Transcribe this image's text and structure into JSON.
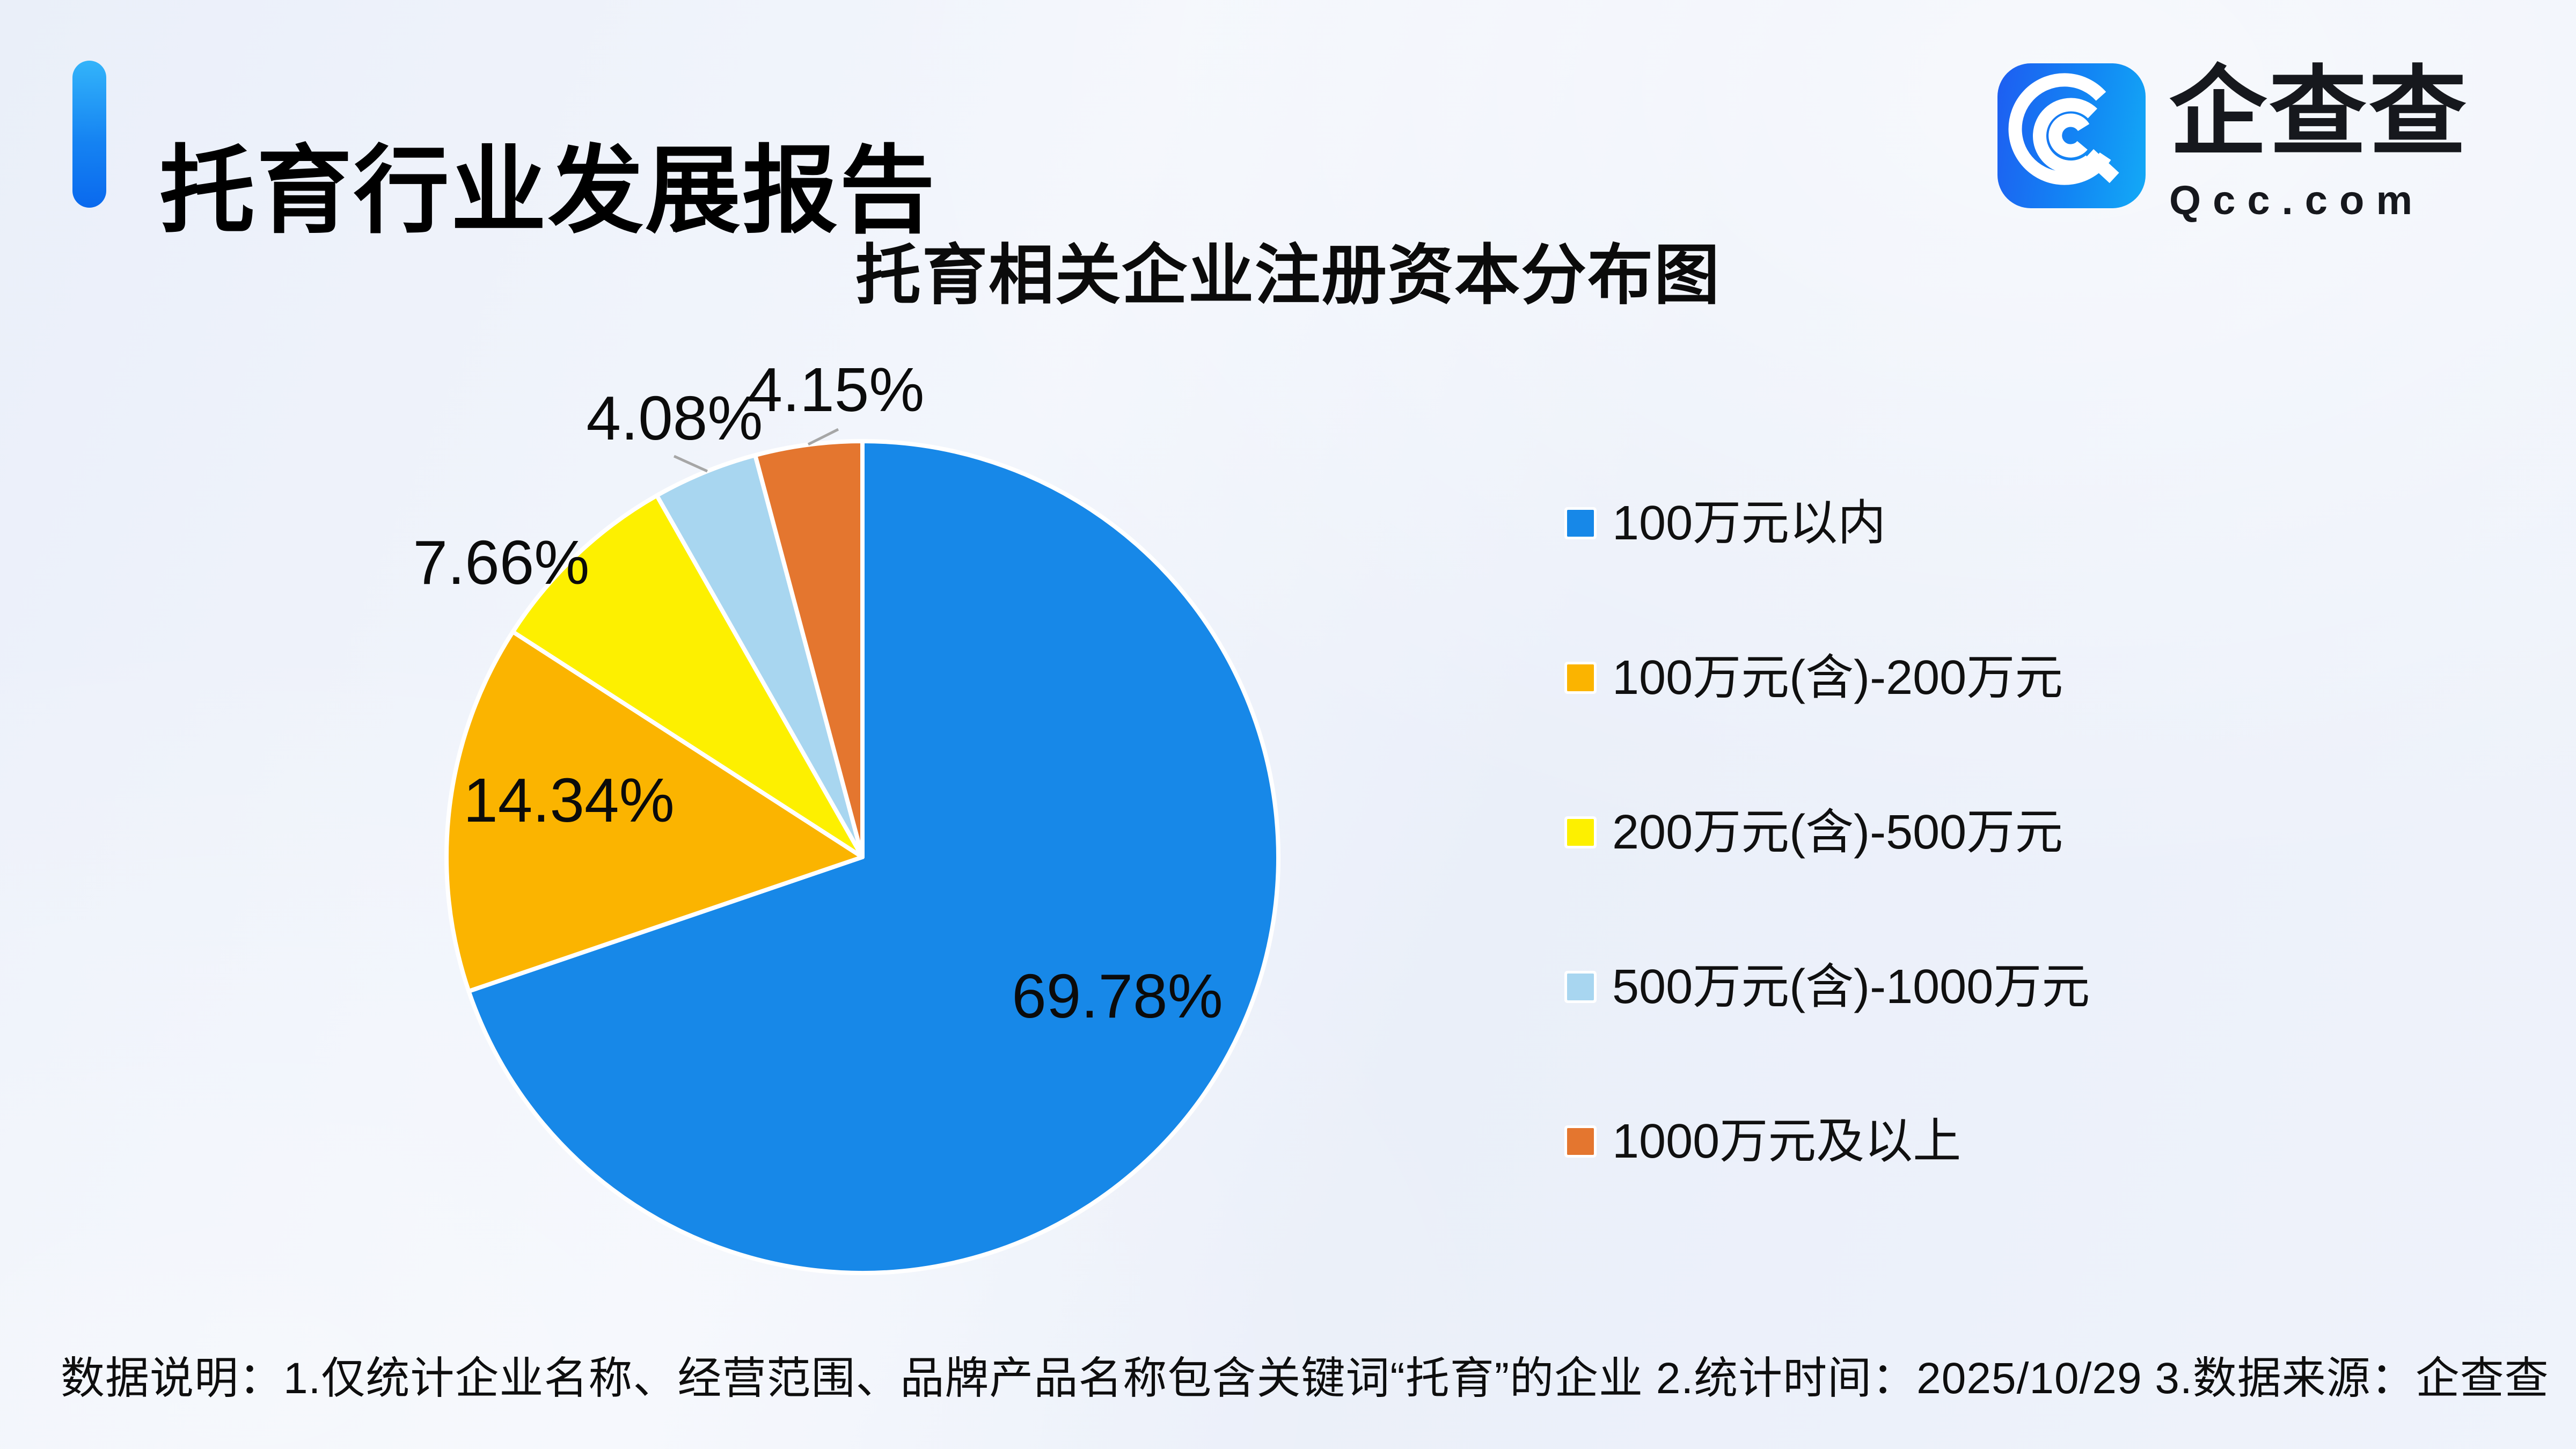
{
  "header": {
    "title": "托育行业发展报告"
  },
  "brand": {
    "name": "企查查",
    "domain": "Qcc.com"
  },
  "chart": {
    "title": "托育相关企业注册资本分布图"
  },
  "chart_data": {
    "type": "pie",
    "title": "托育相关企业注册资本分布图",
    "categories": [
      "100万元以内",
      "100万元(含)-200万元",
      "200万元(含)-500万元",
      "500万元(含)-1000万元",
      "1000万元及以上"
    ],
    "values": [
      69.78,
      14.34,
      7.66,
      4.08,
      4.15
    ],
    "labels": [
      "69.78%",
      "14.34%",
      "7.66%",
      "4.08%",
      "4.15%"
    ],
    "unit": "%",
    "colors": [
      "#1788E8",
      "#FBB400",
      "#FDF000",
      "#A8D6F0",
      "#E4762F"
    ],
    "start_angle_deg": 0,
    "direction": "clockwise",
    "legend_position": "right",
    "slice_border_color": "#FFFFFF",
    "leader_line_color": "#A6A6A6",
    "label_color": "#0B0B0B"
  },
  "footer": {
    "note": "数据说明：1.仅统计企业名称、经营范围、品牌产品名称包含关键词“托育”的企业  2.统计时间：2025/10/29   3.数据来源：企查查"
  }
}
